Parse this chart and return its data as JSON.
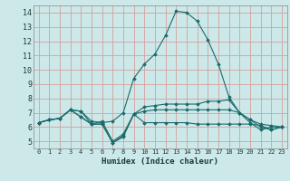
{
  "xlabel": "Humidex (Indice chaleur)",
  "bg_color": "#cce8e8",
  "line_color": "#1a6b6b",
  "grid_color": "#d4a0a0",
  "xlim": [
    -0.5,
    23.5
  ],
  "ylim": [
    4.5,
    14.5
  ],
  "xticks": [
    0,
    1,
    2,
    3,
    4,
    5,
    6,
    7,
    8,
    9,
    10,
    11,
    12,
    13,
    14,
    15,
    16,
    17,
    18,
    19,
    20,
    21,
    22,
    23
  ],
  "yticks": [
    5,
    6,
    7,
    8,
    9,
    10,
    11,
    12,
    13,
    14
  ],
  "series": [
    [
      6.3,
      6.5,
      6.6,
      7.2,
      7.1,
      6.4,
      6.3,
      6.4,
      7.0,
      9.4,
      10.4,
      11.1,
      12.4,
      14.1,
      14.0,
      13.4,
      12.1,
      10.4,
      8.1,
      7.0,
      6.3,
      5.8,
      6.0,
      6.0
    ],
    [
      6.3,
      6.5,
      6.6,
      7.2,
      7.1,
      6.2,
      6.2,
      4.9,
      5.4,
      6.9,
      7.4,
      7.5,
      7.6,
      7.6,
      7.6,
      7.6,
      7.8,
      7.8,
      7.9,
      7.0,
      6.5,
      6.2,
      6.1,
      6.0
    ],
    [
      6.3,
      6.5,
      6.6,
      7.2,
      6.7,
      6.2,
      6.2,
      4.9,
      5.3,
      6.9,
      7.1,
      7.2,
      7.2,
      7.2,
      7.2,
      7.2,
      7.2,
      7.2,
      7.2,
      7.0,
      6.5,
      6.0,
      5.8,
      6.0
    ],
    [
      6.3,
      6.5,
      6.6,
      7.2,
      6.7,
      6.2,
      6.4,
      5.0,
      5.5,
      6.9,
      6.3,
      6.3,
      6.3,
      6.3,
      6.3,
      6.2,
      6.2,
      6.2,
      6.2,
      6.2,
      6.2,
      6.1,
      5.8,
      6.0
    ]
  ]
}
